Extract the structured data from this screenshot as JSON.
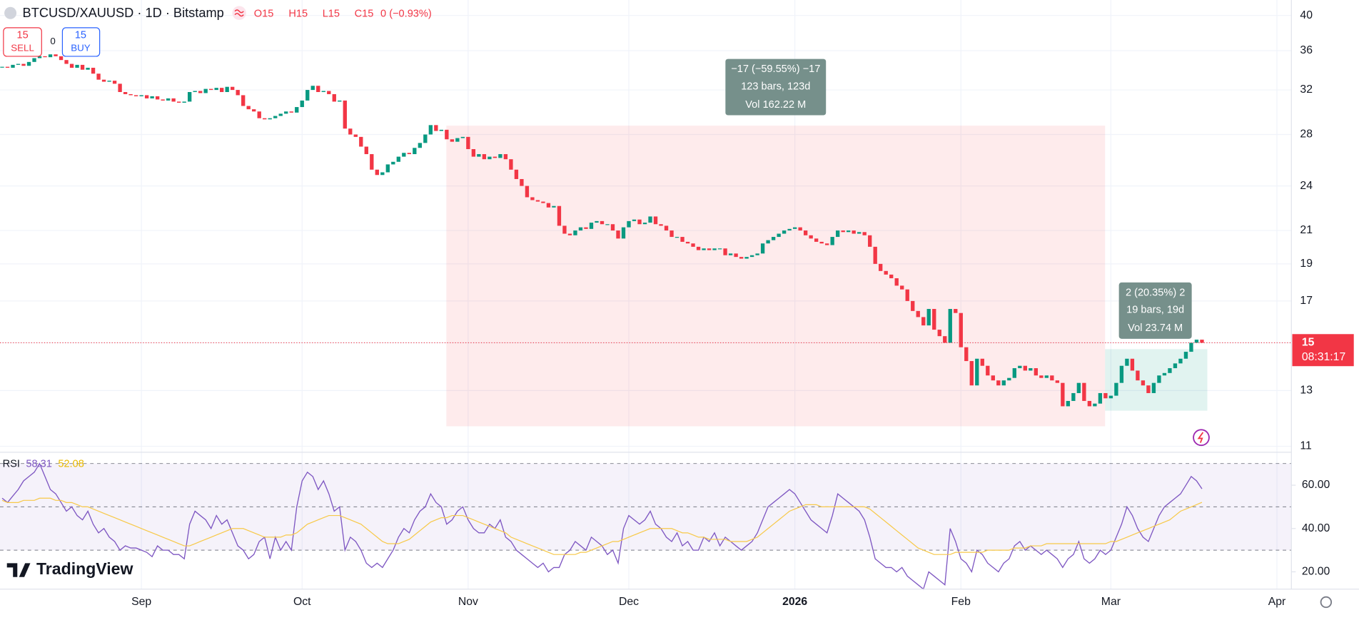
{
  "header": {
    "symbol": "BTCUSD/XAUUSD · 1D · Bitstamp",
    "ohlc": [
      "O15",
      "H15",
      "L15",
      "C15",
      "0 (−0.93%)"
    ],
    "sell": {
      "price": "15",
      "label": "SELL"
    },
    "spread": "0",
    "buy": {
      "price": "15",
      "label": "BUY"
    },
    "branding": "TradingView"
  },
  "chart_data": [
    {
      "type": "candlestick",
      "title": "BTCUSD/XAUUSD",
      "up_color": "#089981",
      "down_color": "#f23645",
      "log_scale": true,
      "grid": true,
      "xlim": [
        -0.4,
        240.7
      ],
      "xticks": [
        {
          "value": 26,
          "label": "Sep"
        },
        {
          "value": 56,
          "label": "Oct"
        },
        {
          "value": 87,
          "label": "Nov"
        },
        {
          "value": 117,
          "label": "Dec"
        },
        {
          "value": 148,
          "label": "2026"
        },
        {
          "value": 179,
          "label": "Feb"
        },
        {
          "value": 207,
          "label": "Mar"
        },
        {
          "value": 238,
          "label": "Apr"
        }
      ],
      "ylim": [
        10.86,
        41.9
      ],
      "yticks": [
        11,
        13,
        15,
        17,
        19,
        21,
        24,
        28,
        32,
        36,
        40
      ],
      "values": [
        34.3,
        34.2,
        34.5,
        34.6,
        34.4,
        34.8,
        35.2,
        35.4,
        35.3,
        35.6,
        35.4,
        35.0,
        34.6,
        34.2,
        34.5,
        34.0,
        34.2,
        33.6,
        33.0,
        32.8,
        32.9,
        32.6,
        31.8,
        31.6,
        31.5,
        31.4,
        31.5,
        31.2,
        31.4,
        31.1,
        31.0,
        31.2,
        30.9,
        30.8,
        30.9,
        31.8,
        31.9,
        31.7,
        32.1,
        32.0,
        32.2,
        31.8,
        32.3,
        32.0,
        31.5,
        30.5,
        30.2,
        30.0,
        29.4,
        29.3,
        29.4,
        29.6,
        29.8,
        30.0,
        29.9,
        30.4,
        31.0,
        32.0,
        32.4,
        31.8,
        31.9,
        31.6,
        30.9,
        31.0,
        28.5,
        28.0,
        27.8,
        27.0,
        26.4,
        25.2,
        24.8,
        25.0,
        25.6,
        25.8,
        26.2,
        26.5,
        26.4,
        26.9,
        27.3,
        28.0,
        28.8,
        28.3,
        28.4,
        27.6,
        27.4,
        27.7,
        27.8,
        26.8,
        26.2,
        26.4,
        26.0,
        26.2,
        26.1,
        26.4,
        26.0,
        25.2,
        24.5,
        24.0,
        23.2,
        23.0,
        22.9,
        22.8,
        22.5,
        22.6,
        21.3,
        20.8,
        20.7,
        21.0,
        21.2,
        21.1,
        21.5,
        21.6,
        21.4,
        21.4,
        21.0,
        20.5,
        21.2,
        21.6,
        21.7,
        21.4,
        21.5,
        21.9,
        21.4,
        21.3,
        21.0,
        20.6,
        20.6,
        20.3,
        20.2,
        20.0,
        19.8,
        19.9,
        19.8,
        19.9,
        19.9,
        19.5,
        19.6,
        19.4,
        19.3,
        19.4,
        19.5,
        19.6,
        20.2,
        20.4,
        20.6,
        20.8,
        21.0,
        21.1,
        21.2,
        21.0,
        20.7,
        20.5,
        20.3,
        20.2,
        20.1,
        20.6,
        21.0,
        20.9,
        21.0,
        20.8,
        20.9,
        20.7,
        20.0,
        19.0,
        18.6,
        18.4,
        18.2,
        17.8,
        17.6,
        17.0,
        16.5,
        16.2,
        15.8,
        16.6,
        15.6,
        15.3,
        15.0,
        16.6,
        16.4,
        14.8,
        14.2,
        13.2,
        14.3,
        14.0,
        13.6,
        13.4,
        13.2,
        13.4,
        13.5,
        13.9,
        14.0,
        13.8,
        13.9,
        13.6,
        13.5,
        13.6,
        13.4,
        13.3,
        12.4,
        12.6,
        12.9,
        13.3,
        12.6,
        12.4,
        12.5,
        12.9,
        12.7,
        12.8,
        13.3,
        14.0,
        14.3,
        13.8,
        13.4,
        13.2,
        12.9,
        13.3,
        13.6,
        13.7,
        13.9,
        14.1,
        14.3,
        14.6,
        15.0,
        15.14,
        15.0
      ],
      "last_price": {
        "label": "15",
        "countdown": "08:31:17"
      },
      "annotations": [
        {
          "lines": [
            "−17 (−59.55%) −17",
            "123 bars, 123d",
            "Vol 162.22 M"
          ]
        },
        {
          "lines": [
            "2 (20.35%) 2",
            "19 bars, 19d",
            "Vol 23.74 M"
          ]
        }
      ]
    },
    {
      "type": "line",
      "title": "RSI",
      "legend_values": [
        "58.31",
        "52.08"
      ],
      "band_color": "#7e57c2",
      "ylim": [
        12,
        73.2
      ],
      "yticks": [
        {
          "value": 20,
          "label": "20.00"
        },
        {
          "value": 40,
          "label": "40.00"
        },
        {
          "value": 60,
          "label": "60.00"
        }
      ],
      "levels": [
        30,
        50,
        70
      ],
      "series": [
        {
          "color": "#7e57c2",
          "values": [
            54,
            52,
            55,
            58,
            62,
            64,
            66,
            70,
            64,
            58,
            56,
            52,
            48,
            50,
            46,
            44,
            48,
            42,
            38,
            40,
            36,
            34,
            30,
            32,
            31,
            31,
            30,
            29,
            27,
            32,
            30,
            30,
            28,
            28,
            26,
            42,
            48,
            46,
            44,
            40,
            46,
            42,
            44,
            38,
            32,
            30,
            26,
            28,
            34,
            36,
            26,
            36,
            30,
            34,
            30,
            50,
            62,
            66,
            64,
            58,
            62,
            56,
            48,
            50,
            30,
            36,
            34,
            30,
            24,
            22,
            24,
            22,
            26,
            30,
            36,
            40,
            38,
            44,
            48,
            50,
            56,
            52,
            50,
            42,
            44,
            48,
            50,
            44,
            40,
            38,
            38,
            42,
            40,
            44,
            36,
            34,
            30,
            28,
            26,
            24,
            22,
            24,
            20,
            22,
            22,
            28,
            30,
            34,
            32,
            30,
            36,
            34,
            32,
            28,
            30,
            24,
            40,
            46,
            44,
            42,
            44,
            48,
            42,
            40,
            36,
            34,
            38,
            32,
            34,
            30,
            30,
            36,
            34,
            38,
            32,
            36,
            34,
            32,
            30,
            32,
            34,
            38,
            44,
            50,
            52,
            54,
            56,
            58,
            56,
            52,
            48,
            44,
            42,
            40,
            38,
            46,
            56,
            54,
            52,
            50,
            48,
            44,
            36,
            26,
            24,
            22,
            22,
            20,
            22,
            18,
            16,
            14,
            12,
            20,
            18,
            16,
            14,
            40,
            34,
            26,
            24,
            20,
            30,
            28,
            24,
            22,
            20,
            24,
            26,
            32,
            34,
            30,
            32,
            30,
            28,
            30,
            28,
            26,
            22,
            26,
            28,
            34,
            26,
            24,
            26,
            30,
            28,
            30,
            36,
            42,
            50,
            46,
            40,
            36,
            34,
            40,
            46,
            50,
            52,
            54,
            56,
            60,
            64,
            62,
            58.31
          ]
        },
        {
          "color": "#f7c948",
          "values": [
            53,
            52,
            52,
            52,
            53,
            53,
            53,
            54,
            54,
            54,
            53,
            53,
            52,
            52,
            51,
            50,
            50,
            49,
            48,
            47,
            46,
            45,
            44,
            43,
            42,
            41,
            40,
            39,
            38,
            37,
            36,
            35,
            34,
            33,
            32,
            32,
            33,
            34,
            35,
            36,
            37,
            38,
            39,
            40,
            40,
            40,
            39,
            38,
            37,
            36,
            36,
            36,
            36,
            37,
            37,
            38,
            40,
            42,
            43,
            44,
            45,
            46,
            46,
            46,
            45,
            44,
            43,
            42,
            40,
            38,
            36,
            34,
            33,
            33,
            33,
            34,
            35,
            37,
            39,
            41,
            43,
            44,
            45,
            45,
            46,
            46,
            46,
            45,
            44,
            43,
            42,
            41,
            40,
            39,
            38,
            36,
            35,
            34,
            33,
            32,
            31,
            30,
            29,
            28,
            28,
            28,
            28,
            28,
            29,
            29,
            30,
            31,
            32,
            33,
            34,
            34,
            35,
            36,
            37,
            38,
            39,
            40,
            40,
            40,
            40,
            40,
            39,
            38,
            38,
            37,
            36,
            36,
            35,
            35,
            35,
            35,
            34,
            34,
            34,
            34,
            35,
            36,
            38,
            40,
            42,
            44,
            46,
            48,
            49,
            50,
            51,
            51,
            51,
            50,
            50,
            50,
            50,
            50,
            50,
            50,
            50,
            50,
            49,
            47,
            45,
            43,
            41,
            39,
            37,
            35,
            33,
            31,
            30,
            29,
            28,
            28,
            28,
            28,
            29,
            29,
            29,
            29,
            29,
            29,
            30,
            30,
            30,
            30,
            30,
            31,
            31,
            31,
            32,
            32,
            32,
            33,
            33,
            33,
            33,
            33,
            33,
            33,
            33,
            33,
            33,
            33,
            33,
            34,
            34,
            35,
            36,
            37,
            38,
            39,
            40,
            41,
            42,
            43,
            44,
            46,
            48,
            49,
            50,
            51,
            52.08
          ]
        }
      ]
    }
  ]
}
